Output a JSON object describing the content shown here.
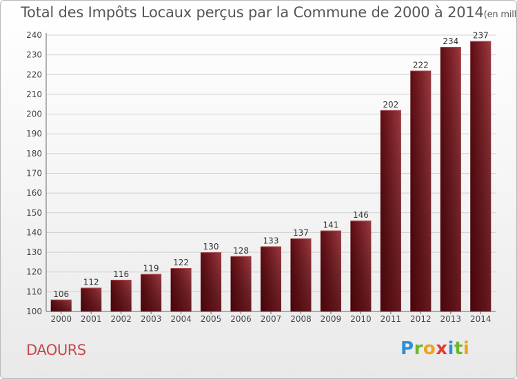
{
  "header": {
    "title": "Total des Impôts Locaux perçus par la Commune de 2000 à 2014",
    "unit": "(en milliers d'€)"
  },
  "commune": "DAOURS",
  "brand": {
    "name": "Proxiti",
    "letters": [
      "P",
      "r",
      "o",
      "x",
      "i",
      "t",
      "i"
    ],
    "colors": [
      "#2f8fd8",
      "#6fb52c",
      "#f0a21a",
      "#e23b2e",
      "#2f8fd8",
      "#6fb52c",
      "#f0a21a"
    ]
  },
  "chart_data": {
    "type": "bar",
    "title": "Total des Impôts Locaux perçus par la Commune de 2000 à 2014",
    "xlabel": "",
    "ylabel": "",
    "ylim": [
      100,
      240
    ],
    "ytick_step": 10,
    "categories": [
      "2000",
      "2001",
      "2002",
      "2003",
      "2004",
      "2005",
      "2006",
      "2007",
      "2008",
      "2009",
      "2010",
      "2011",
      "2012",
      "2013",
      "2014"
    ],
    "values": [
      106,
      112,
      116,
      119,
      122,
      130,
      128,
      133,
      137,
      141,
      146,
      202,
      222,
      234,
      237
    ],
    "bar_color": "#7a1f25",
    "grid": true
  }
}
